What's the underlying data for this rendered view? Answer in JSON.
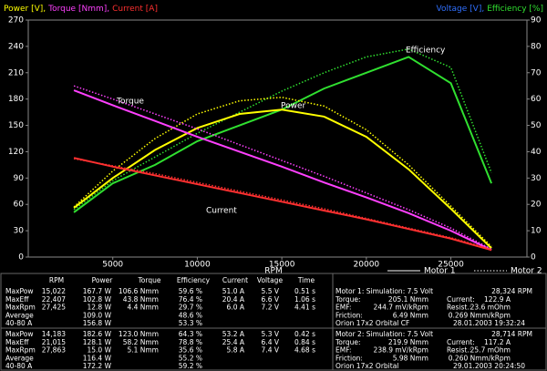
{
  "chart_data": {
    "type": "line",
    "y_label_parts": [
      {
        "text": "Power [V],",
        "color": "#ffff00"
      },
      {
        "text": "Torque [Nmm],",
        "color": "#ff40ff"
      },
      {
        "text": "Current [A]",
        "color": "#ff3030"
      }
    ],
    "y2_label_parts": [
      {
        "text": "Voltage [V],",
        "color": "#3070ff"
      },
      {
        "text": "Efficiency [%]",
        "color": "#30e030"
      }
    ],
    "x_label": "RPM",
    "x": [
      2700,
      5000,
      7500,
      10000,
      12500,
      15000,
      17500,
      20000,
      22500,
      25000,
      27400
    ],
    "xlim": [
      0,
      29500
    ],
    "xticks": [
      5000,
      10000,
      15000,
      20000,
      25000
    ],
    "ylim": [
      0,
      270
    ],
    "yticks": [
      0,
      30,
      60,
      90,
      120,
      150,
      180,
      210,
      240,
      270
    ],
    "y2lim": [
      0,
      90
    ],
    "y2ticks": [
      0,
      10,
      20,
      30,
      40,
      50,
      60,
      70,
      80,
      90
    ],
    "legend": [
      {
        "name": "Motor 1",
        "dash": "solid"
      },
      {
        "name": "Motor 2",
        "dash": "dotted"
      }
    ],
    "series": [
      {
        "name": "Efficiency",
        "color": "#30e030",
        "axis": "y2",
        "motor_values": [
          [
            17,
            28,
            35,
            44,
            50,
            56,
            64,
            70,
            76,
            66,
            28
          ],
          [
            18,
            29,
            38,
            47,
            55,
            63,
            70,
            76,
            79,
            72,
            32
          ]
        ]
      },
      {
        "name": "Power",
        "color": "#ffff00",
        "motor_values": [
          [
            56,
            90,
            122,
            147,
            163,
            168,
            160,
            137,
            100,
            55,
            10
          ],
          [
            57,
            98,
            135,
            163,
            178,
            182,
            172,
            145,
            105,
            58,
            12
          ]
        ]
      },
      {
        "name": "Torque",
        "color": "#ff40ff",
        "motor_values": [
          [
            190,
            173,
            155,
            137,
            120,
            103,
            85,
            68,
            50,
            30,
            8
          ],
          [
            195,
            180,
            163,
            146,
            128,
            110,
            92,
            73,
            54,
            33,
            9
          ]
        ]
      },
      {
        "name": "Current",
        "color": "#ff3030",
        "motor_values": [
          [
            113,
            103,
            93,
            83,
            73,
            63,
            53,
            43,
            32,
            21,
            8
          ],
          [
            112,
            104,
            95,
            85,
            75,
            65,
            55,
            44,
            33,
            22,
            9
          ]
        ]
      }
    ]
  },
  "stats": {
    "header": [
      {
        "text": "RPM",
        "color": "#20c020"
      },
      {
        "text": "Power",
        "color": "#ffff00"
      },
      {
        "text": "Torque",
        "color": "#ff40ff"
      },
      {
        "text": "Efficiency",
        "color": "#30e030"
      },
      {
        "text": "Current",
        "color": "#ff3030"
      },
      {
        "text": "Voltage",
        "color": "#3070ff"
      },
      {
        "text": "Time",
        "color": "#ffffff"
      }
    ],
    "blocks": [
      [
        [
          "MaxPow",
          "15,022",
          "167.7 W",
          "106.6 Nmm",
          "59.6 %",
          "51.0 A",
          "5.5 V",
          "0.51 s"
        ],
        [
          "MaxEff",
          "22,407",
          "102.8 W",
          "43.8 Nmm",
          "76.4 %",
          "20.4 A",
          "6.6 V",
          "1.06 s"
        ],
        [
          "MaxRpm",
          "27,425",
          "12.8 W",
          "4.4 Nmm",
          "29.7 %",
          "6.0 A",
          "7.2 V",
          "4.41 s"
        ],
        [
          "Average",
          null,
          "109.0 W",
          null,
          "48.6 %",
          null,
          null,
          null
        ],
        [
          "40-80 A",
          null,
          "156.8 W",
          null,
          "53.3 %",
          null,
          null,
          null
        ]
      ],
      [
        [
          "MaxPow",
          "14,183",
          "182.6 W",
          "123.0 Nmm",
          "64.3 %",
          "53.2 A",
          "5.3 V",
          "0.42 s"
        ],
        [
          "MaxEff",
          "21,015",
          "128.1 W",
          "58.2 Nmm",
          "78.8 %",
          "25.4 A",
          "6.4 V",
          "0.84 s"
        ],
        [
          "MaxRpm",
          "27,863",
          "15.0 W",
          "5.1 Nmm",
          "35.6 %",
          "5.8 A",
          "7.4 V",
          "4.68 s"
        ],
        [
          "Average",
          null,
          "116.4 W",
          null,
          "55.2 %",
          null,
          null,
          null
        ],
        [
          "40-80 A",
          null,
          "172.2 W",
          null,
          "59.2 %",
          null,
          null,
          null
        ]
      ]
    ]
  },
  "motors": [
    {
      "title": "Motor 1: Simulation: 7.5 Volt",
      "rpm": "28,324 RPM",
      "rows": [
        [
          "Torque:",
          "205.1 Nmm",
          "Current:",
          "122.9 A"
        ],
        [
          "EMF:",
          "244.7 mV/kRpm",
          "Resist.:",
          "23.6 mOhm"
        ],
        [
          "Friction:",
          "6.49 Nmm",
          null,
          "0.269 Nmm/kRpm"
        ]
      ],
      "name": "Orion 17x2 Orbital CF",
      "date": "28.01.2003 19:32:24"
    },
    {
      "title": "Motor 2: Simulation: 7.5 Volt",
      "rpm": "28,714 RPM",
      "rows": [
        [
          "Torque:",
          "219.9 Nmm",
          "Current:",
          "117.2 A"
        ],
        [
          "EMF:",
          "238.9 mV/kRpm",
          "Resist.:",
          "25.7 mOhm"
        ],
        [
          "Friction:",
          "5.98 Nmm",
          null,
          "0.260 Nmm/kRpm"
        ]
      ],
      "name": "Orion 17x2 Orbital",
      "date": "29.01.2003 20:24:50"
    }
  ]
}
